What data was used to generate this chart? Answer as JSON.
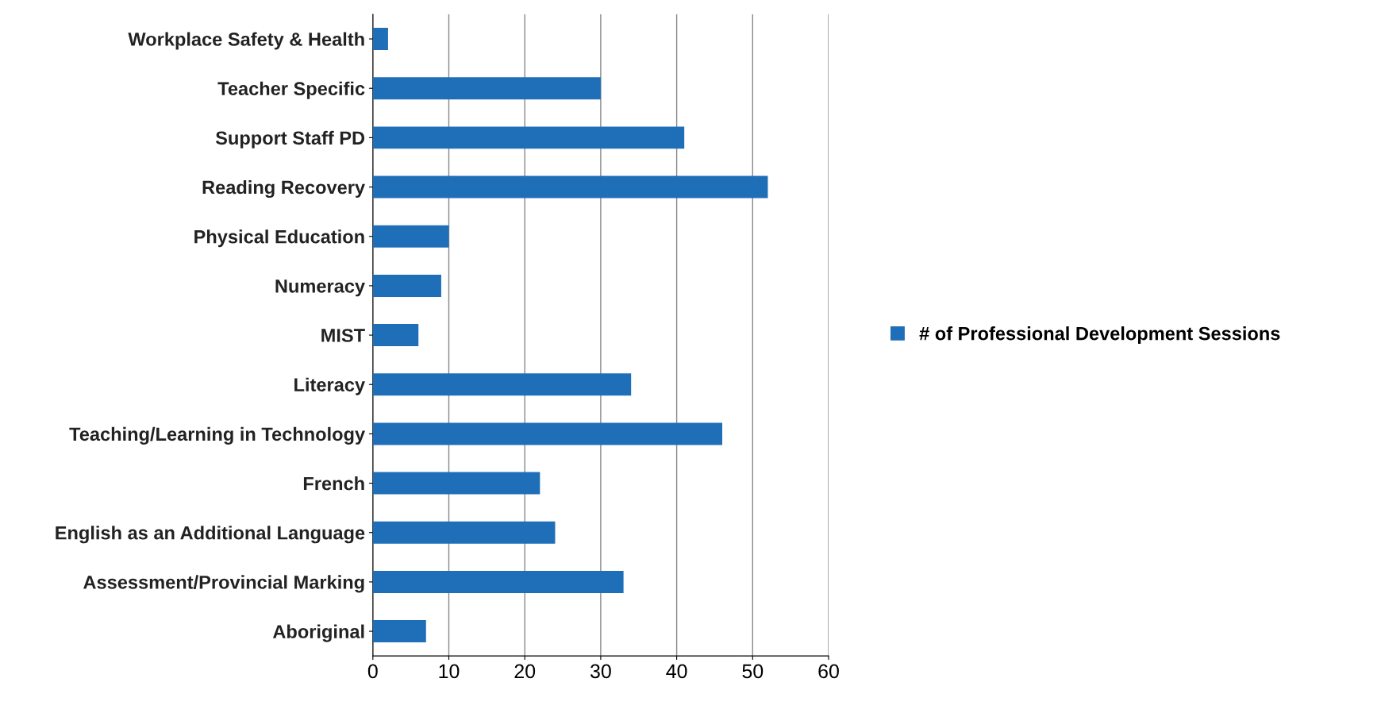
{
  "chart_data": {
    "type": "bar",
    "orientation": "horizontal",
    "categories": [
      "Workplace Safety & Health",
      "Teacher Specific",
      "Support Staff PD",
      "Reading Recovery",
      "Physical Education",
      "Numeracy",
      "MIST",
      "Literacy",
      "Teaching/Learning in Technology",
      "French",
      "English as an Additional Language",
      "Assessment/Provincial Marking",
      "Aboriginal"
    ],
    "series": [
      {
        "name": "# of Professional Development Sessions",
        "color": "#1f6fb8",
        "values": [
          2,
          30,
          41,
          52,
          10,
          9,
          6,
          34,
          46,
          22,
          24,
          33,
          7
        ]
      }
    ],
    "xlim": [
      0,
      60
    ],
    "xticks": [
      0,
      10,
      20,
      30,
      40,
      50,
      60
    ],
    "grid": "x",
    "legend": "right"
  }
}
